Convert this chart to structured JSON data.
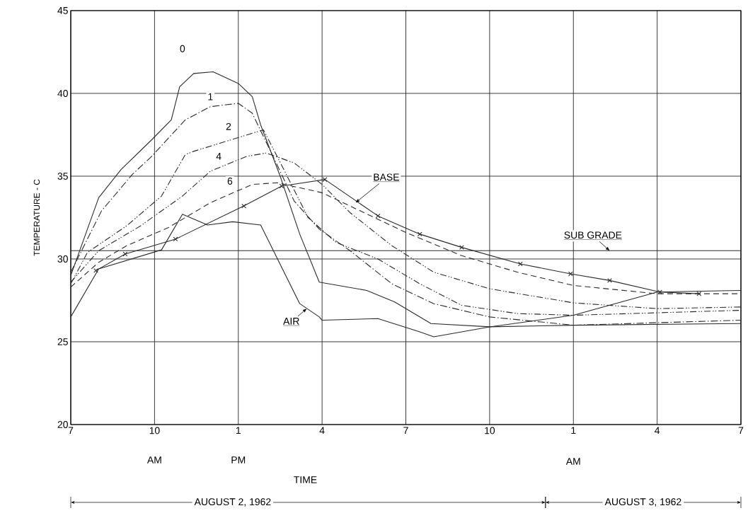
{
  "chart_data": {
    "type": "line",
    "xlabel": "TIME",
    "ylabel": "TEMPERATURE - C",
    "xlim": [
      "1962-08-02T07:00",
      "1962-08-03T07:00"
    ],
    "ylim": [
      20,
      45
    ],
    "xticks": [
      {
        "value": "1962-08-02T07:00",
        "label": "7"
      },
      {
        "value": "1962-08-02T10:00",
        "label": "10"
      },
      {
        "value": "1962-08-02T13:00",
        "label": "1"
      },
      {
        "value": "1962-08-02T16:00",
        "label": "4"
      },
      {
        "value": "1962-08-02T19:00",
        "label": "7"
      },
      {
        "value": "1962-08-02T22:00",
        "label": "10"
      },
      {
        "value": "1962-08-03T01:00",
        "label": "1"
      },
      {
        "value": "1962-08-03T04:00",
        "label": "4"
      },
      {
        "value": "1962-08-03T07:00",
        "label": "7"
      }
    ],
    "yticks": [
      20,
      25,
      30,
      35,
      40,
      45
    ],
    "grid": true,
    "series": [
      {
        "name": "0",
        "color": "#2a2a2a",
        "line_style": "solid",
        "x": [
          "1962-08-02T07:00",
          "1962-08-02T08:00",
          "1962-08-02T08:48",
          "1962-08-02T09:54",
          "1962-08-02T10:36",
          "1962-08-02T10:54",
          "1962-08-02T11:24",
          "1962-08-02T12:06",
          "1962-08-02T13:00",
          "1962-08-02T13:30",
          "1962-08-02T13:48",
          "1962-08-02T14:30",
          "1962-08-02T15:12",
          "1962-08-02T15:54",
          "1962-08-02T17:36",
          "1962-08-02T18:36",
          "1962-08-02T19:54",
          "1962-08-02T22:00",
          "1962-08-03T01:00",
          "1962-08-03T07:00"
        ],
        "values": [
          29.0,
          33.7,
          35.4,
          37.2,
          38.4,
          40.4,
          41.2,
          41.3,
          40.6,
          39.8,
          38.1,
          35.0,
          31.5,
          28.6,
          28.1,
          27.4,
          26.1,
          25.9,
          26.0,
          26.1
        ]
      },
      {
        "name": "1",
        "color": "#2a2a2a",
        "line_style": "dashdot",
        "x": [
          "1962-08-02T07:00",
          "1962-08-02T08:06",
          "1962-08-02T09:12",
          "1962-08-02T09:54",
          "1962-08-02T11:06",
          "1962-08-02T12:00",
          "1962-08-02T13:00",
          "1962-08-02T13:30",
          "1962-08-02T14:18",
          "1962-08-02T15:00",
          "1962-08-02T15:54",
          "1962-08-02T17:00",
          "1962-08-02T18:30",
          "1962-08-02T20:00",
          "1962-08-02T22:00",
          "1962-08-03T01:00",
          "1962-08-03T07:00"
        ],
        "values": [
          29.2,
          32.9,
          35.1,
          36.2,
          38.4,
          39.2,
          39.4,
          38.8,
          36.0,
          33.5,
          31.8,
          30.5,
          28.5,
          27.3,
          26.5,
          26.0,
          26.3
        ]
      },
      {
        "name": "2",
        "color": "#2a2a2a",
        "line_style": "dashdotdot",
        "x": [
          "1962-08-02T07:00",
          "1962-08-02T07:36",
          "1962-08-02T09:00",
          "1962-08-02T10:15",
          "1962-08-02T11:06",
          "1962-08-02T11:24",
          "1962-08-02T13:54",
          "1962-08-02T14:36",
          "1962-08-02T15:30",
          "1962-08-02T16:30",
          "1962-08-02T18:00",
          "1962-08-02T19:30",
          "1962-08-02T21:00",
          "1962-08-02T23:00",
          "1962-08-03T01:00",
          "1962-08-03T07:00"
        ],
        "values": [
          28.5,
          30.4,
          32.0,
          33.8,
          36.3,
          36.5,
          37.8,
          35.5,
          32.5,
          31.0,
          30.0,
          28.5,
          27.2,
          26.7,
          26.6,
          26.9
        ]
      },
      {
        "name": "4",
        "color": "#2a2a2a",
        "line_style": "dashdotdot",
        "x": [
          "1962-08-02T07:00",
          "1962-08-02T08:00",
          "1962-08-02T09:30",
          "1962-08-02T11:00",
          "1962-08-02T12:00",
          "1962-08-02T13:18",
          "1962-08-02T14:00",
          "1962-08-02T15:00",
          "1962-08-02T16:00",
          "1962-08-02T17:00",
          "1962-08-02T18:30",
          "1962-08-02T20:00",
          "1962-08-02T22:00",
          "1962-08-03T01:00",
          "1962-08-03T04:00",
          "1962-08-03T07:00"
        ],
        "values": [
          28.6,
          30.5,
          32.0,
          33.8,
          35.3,
          36.2,
          36.4,
          35.8,
          34.5,
          32.8,
          30.8,
          29.2,
          28.2,
          27.35,
          27.0,
          27.1
        ]
      },
      {
        "name": "6",
        "color": "#2a2a2a",
        "line_style": "dashed",
        "x": [
          "1962-08-02T07:00",
          "1962-08-02T08:00",
          "1962-08-02T09:00",
          "1962-08-02T10:30",
          "1962-08-02T12:00",
          "1962-08-02T13:30",
          "1962-08-02T14:24",
          "1962-08-02T16:00",
          "1962-08-02T17:30",
          "1962-08-02T19:00",
          "1962-08-02T21:00",
          "1962-08-02T23:00",
          "1962-08-03T01:00",
          "1962-08-03T04:00",
          "1962-08-03T07:00"
        ],
        "values": [
          28.3,
          29.8,
          30.8,
          31.9,
          33.4,
          34.5,
          34.6,
          34.0,
          32.8,
          31.6,
          30.2,
          29.2,
          28.4,
          27.9,
          27.9
        ]
      },
      {
        "name": "BASE",
        "color": "#2a2a2a",
        "line_style": "solid",
        "marker": "cross",
        "x": [
          "1962-08-02T07:54",
          "1962-08-02T08:57",
          "1962-08-02T10:45",
          "1962-08-02T13:12",
          "1962-08-02T14:33",
          "1962-08-02T16:06",
          "1962-08-02T18:00",
          "1962-08-02T19:30",
          "1962-08-02T21:00",
          "1962-08-02T23:06",
          "1962-08-03T00:54",
          "1962-08-03T02:18",
          "1962-08-03T04:06",
          "1962-08-03T05:30"
        ],
        "values": [
          29.3,
          30.3,
          31.2,
          33.2,
          34.4,
          34.8,
          32.6,
          31.5,
          30.7,
          29.7,
          29.1,
          28.7,
          28.0,
          27.9
        ]
      },
      {
        "name": "SUB GRADE",
        "color": "#2a2a2a",
        "line_style": "solid",
        "x": [
          "1962-08-02T07:00",
          "1962-08-03T07:00"
        ],
        "values": [
          30.5,
          30.5
        ]
      },
      {
        "name": "AIR",
        "color": "#2a2a2a",
        "line_style": "solid",
        "x": [
          "1962-08-02T07:00",
          "1962-08-02T08:00",
          "1962-08-02T10:15",
          "1962-08-02T11:00",
          "1962-08-02T11:54",
          "1962-08-02T12:48",
          "1962-08-02T13:48",
          "1962-08-02T15:12",
          "1962-08-02T15:54",
          "1962-08-02T16:00",
          "1962-08-02T18:00",
          "1962-08-02T19:30",
          "1962-08-02T20:00",
          "1962-08-02T22:00",
          "1962-08-03T01:00",
          "1962-08-03T04:00",
          "1962-08-03T07:00"
        ],
        "values": [
          26.5,
          29.4,
          30.55,
          32.7,
          32.05,
          32.25,
          32.05,
          27.3,
          26.5,
          26.3,
          26.4,
          25.6,
          25.3,
          25.9,
          26.6,
          28.0,
          28.1
        ]
      }
    ],
    "annotations": [
      "AM",
      "PM",
      "AM",
      "AUGUST 2, 1962",
      "AUGUST 3, 1962"
    ]
  }
}
